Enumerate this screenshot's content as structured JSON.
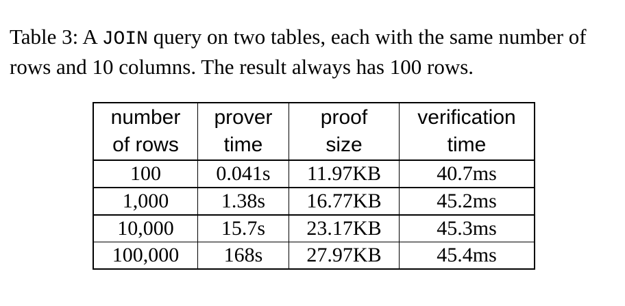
{
  "caption": {
    "label": "Table 3:",
    "text_before": "A",
    "code": "JOIN",
    "text_after": "query on two tables, each with the same number of rows and 10 columns. The result always has 100 rows."
  },
  "table": {
    "columns": [
      {
        "line1": "number",
        "line2": "of rows"
      },
      {
        "line1": "prover",
        "line2": "time"
      },
      {
        "line1": "proof",
        "line2": "size"
      },
      {
        "line1": "verification",
        "line2": "time"
      }
    ],
    "rows": [
      [
        "100",
        "0.041s",
        "11.97KB",
        "40.7ms"
      ],
      [
        "1,000",
        "1.38s",
        "16.77KB",
        "45.2ms"
      ],
      [
        "10,000",
        "15.7s",
        "23.17KB",
        "45.3ms"
      ],
      [
        "100,000",
        "168s",
        "27.97KB",
        "45.4ms"
      ]
    ]
  }
}
